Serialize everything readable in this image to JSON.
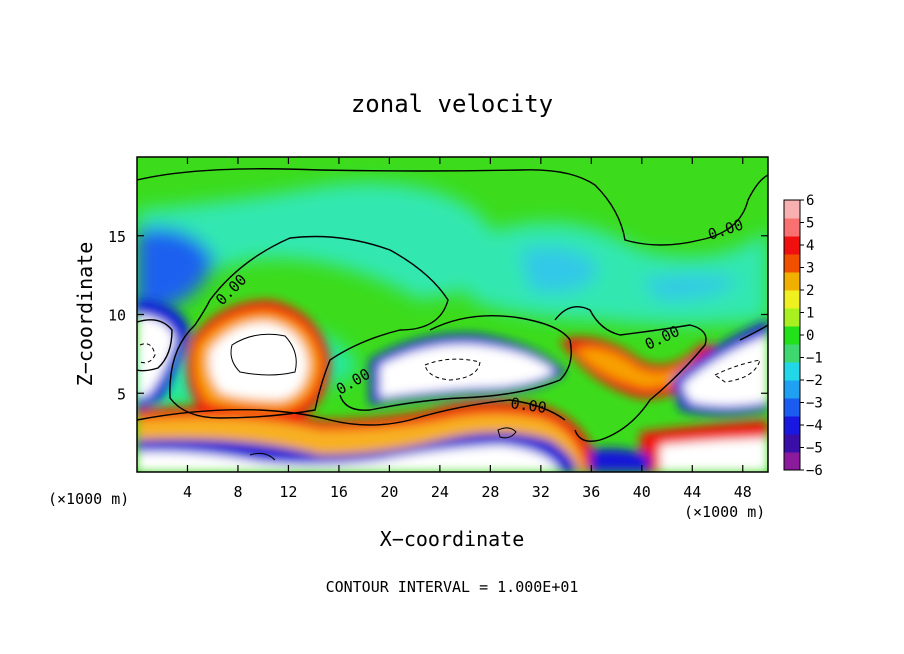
{
  "chart_data": {
    "type": "heatmap",
    "title": "zonal velocity",
    "xlabel": "X−coordinate",
    "ylabel": "Z−coordinate",
    "x_unit_left": "(×1000 m)",
    "x_unit_right": "(×1000 m)",
    "footer": "CONTOUR INTERVAL = 1.000E+01",
    "xlim": [
      0,
      50
    ],
    "ylim": [
      0,
      20
    ],
    "x_ticks": [
      4,
      8,
      12,
      16,
      20,
      24,
      28,
      32,
      36,
      40,
      44,
      48
    ],
    "y_ticks": [
      5,
      10,
      15
    ],
    "colorbar": {
      "ticks": [
        6,
        5,
        4,
        3,
        2,
        1,
        0,
        -1,
        -2,
        -3,
        -4,
        -5,
        -6
      ],
      "tick_labels": [
        "6",
        "5",
        "4",
        "3",
        "2",
        "1",
        "0",
        "−1",
        "−2",
        "−3",
        "−4",
        "−5",
        "−6"
      ],
      "range": [
        -6,
        6
      ],
      "colors": [
        "#8b1a9c",
        "#3a0ea8",
        "#1818e0",
        "#1a5cf0",
        "#1fa0f0",
        "#22d8e8",
        "#3fd870",
        "#22e01a",
        "#a8f020",
        "#f0f020",
        "#f0b000",
        "#f05000",
        "#f01010",
        "#f87070",
        "#f8b0b0"
      ]
    },
    "contour_labels": [
      "0.00",
      "0.00",
      "0.00",
      "0.00",
      "0.00"
    ],
    "background_value": 0.2
  },
  "palette": {
    "fill_above_range": "#ffffff",
    "fill_below_range": "#ffffff"
  }
}
